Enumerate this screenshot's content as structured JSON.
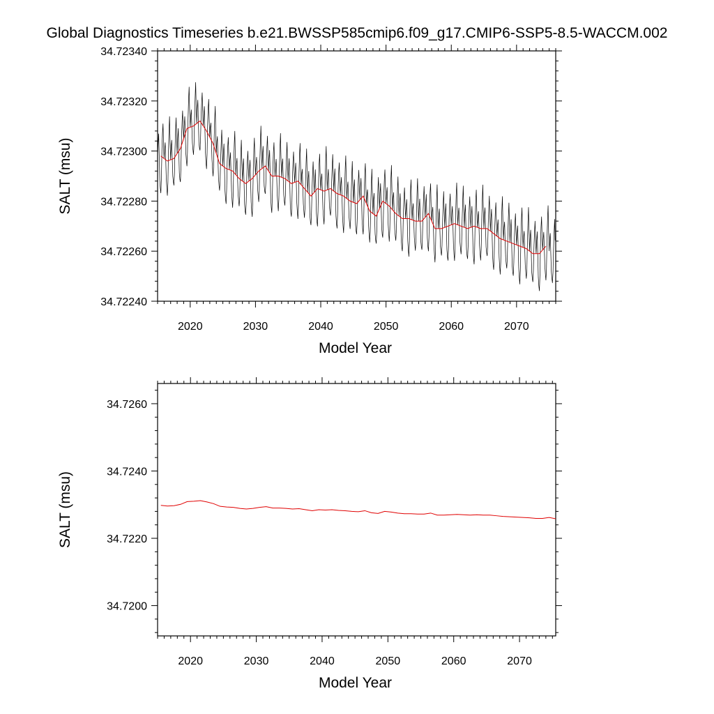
{
  "title": "Global Diagnostics Timeseries b.e21.BWSSP585cmip6.f09_g17.CMIP6-SSP5-8.5-WACCM.002",
  "colors": {
    "monthly": "#000000",
    "annual": "#e00000",
    "frame": "#000000"
  },
  "chart_data": [
    {
      "type": "line",
      "xlabel": "Model Year",
      "ylabel": "SALT (msu)",
      "xlim": [
        2015,
        2076
      ],
      "ylim": [
        34.7224,
        34.7234
      ],
      "xticks": [
        2020,
        2030,
        2040,
        2050,
        2060,
        2070
      ],
      "xtick_labels": [
        "2020",
        "2030",
        "2040",
        "2050",
        "2060",
        "2070"
      ],
      "yticks": [
        34.7224,
        34.7226,
        34.7228,
        34.723,
        34.7232,
        34.7234
      ],
      "ytick_labels": [
        "34.72240",
        "34.72260",
        "34.72280",
        "34.72300",
        "34.72320",
        "34.72340"
      ],
      "series": [
        {
          "style": "monthly",
          "x_start": 2015.0,
          "x_step": 0.08333,
          "annual_cycle": [
            0.0,
            5e-05,
            8e-05,
            0.0,
            -8e-05,
            -0.00011,
            -0.00013,
            -8e-05,
            3e-05,
            0.0001,
            0.00015,
            6e-05
          ],
          "anomaly_years": [
            2015.5,
            2016.5,
            2017.5,
            2018.5,
            2019.5,
            2020.5,
            2021.5,
            2022.5,
            2023.5,
            2024.5,
            2025.5,
            2026.5,
            2027.5,
            2028.5,
            2029.5,
            2030.5,
            2031.5,
            2032.5,
            2033.5,
            2034.5,
            2035.5,
            2036.5,
            2037.5,
            2038.5,
            2039.5,
            2040.5,
            2041.5,
            2042.5,
            2043.5,
            2044.5,
            2045.5,
            2046.5,
            2047.5,
            2048.5,
            2049.5,
            2050.5,
            2051.5,
            2052.5,
            2053.5,
            2054.5,
            2055.5,
            2056.5,
            2057.5,
            2058.5,
            2059.5,
            2060.5,
            2061.5,
            2062.5,
            2063.5,
            2064.5,
            2065.5,
            2066.5,
            2067.5,
            2068.5,
            2069.5,
            2070.5,
            2071.5,
            2072.5,
            2073.5,
            2074.5,
            2075.5
          ],
          "baseline": [
            34.72298,
            34.72296,
            34.72297,
            34.72301,
            34.72309,
            34.7231,
            34.72312,
            34.72308,
            34.72303,
            34.72295,
            34.72293,
            34.72292,
            34.72289,
            34.72287,
            34.72289,
            34.72292,
            34.72294,
            34.7229,
            34.7229,
            34.72289,
            34.72287,
            34.72288,
            34.72285,
            34.72282,
            34.72285,
            34.72284,
            34.72285,
            34.72283,
            34.72282,
            34.7228,
            34.72279,
            34.72282,
            34.72276,
            34.72274,
            34.7228,
            34.72278,
            34.72275,
            34.72273,
            34.72273,
            34.72272,
            34.72272,
            34.72275,
            34.72269,
            34.72269,
            34.7227,
            34.72271,
            34.7227,
            34.72269,
            34.7227,
            34.72269,
            34.72269,
            34.72267,
            34.72265,
            34.72264,
            34.72263,
            34.72262,
            34.72261,
            34.72259,
            34.72259,
            34.72262,
            34.72258
          ]
        },
        {
          "style": "annual",
          "x": [
            2015.5,
            2016.5,
            2017.5,
            2018.5,
            2019.5,
            2020.5,
            2021.5,
            2022.5,
            2023.5,
            2024.5,
            2025.5,
            2026.5,
            2027.5,
            2028.5,
            2029.5,
            2030.5,
            2031.5,
            2032.5,
            2033.5,
            2034.5,
            2035.5,
            2036.5,
            2037.5,
            2038.5,
            2039.5,
            2040.5,
            2041.5,
            2042.5,
            2043.5,
            2044.5,
            2045.5,
            2046.5,
            2047.5,
            2048.5,
            2049.5,
            2050.5,
            2051.5,
            2052.5,
            2053.5,
            2054.5,
            2055.5,
            2056.5,
            2057.5,
            2058.5,
            2059.5,
            2060.5,
            2061.5,
            2062.5,
            2063.5,
            2064.5,
            2065.5,
            2066.5,
            2067.5,
            2068.5,
            2069.5,
            2070.5,
            2071.5,
            2072.5,
            2073.5,
            2074.5
          ],
          "y": [
            34.72298,
            34.72296,
            34.72297,
            34.72301,
            34.72309,
            34.7231,
            34.72312,
            34.72308,
            34.72303,
            34.72295,
            34.72293,
            34.72292,
            34.72289,
            34.72287,
            34.72289,
            34.72292,
            34.72294,
            34.7229,
            34.7229,
            34.72289,
            34.72287,
            34.72288,
            34.72285,
            34.72282,
            34.72285,
            34.72284,
            34.72285,
            34.72283,
            34.72282,
            34.7228,
            34.72279,
            34.72282,
            34.72276,
            34.72274,
            34.7228,
            34.72278,
            34.72275,
            34.72273,
            34.72273,
            34.72272,
            34.72272,
            34.72275,
            34.72269,
            34.72269,
            34.7227,
            34.72271,
            34.7227,
            34.72269,
            34.7227,
            34.72269,
            34.72269,
            34.72267,
            34.72265,
            34.72264,
            34.72263,
            34.72262,
            34.72261,
            34.72259,
            34.72259,
            34.72262
          ]
        }
      ]
    },
    {
      "type": "line",
      "xlabel": "Model Year",
      "ylabel": "SALT (msu)",
      "xlim": [
        2015,
        2075.5
      ],
      "ylim": [
        34.7191,
        34.7266
      ],
      "xticks": [
        2020,
        2030,
        2040,
        2050,
        2060,
        2070
      ],
      "xtick_labels": [
        "2020",
        "2030",
        "2040",
        "2050",
        "2060",
        "2070"
      ],
      "yticks": [
        34.72,
        34.722,
        34.724,
        34.726
      ],
      "ytick_labels": [
        "34.7200",
        "34.7220",
        "34.7240",
        "34.7260"
      ],
      "series": [
        {
          "style": "annual",
          "x": [
            2015.5,
            2016.5,
            2017.5,
            2018.5,
            2019.5,
            2020.5,
            2021.5,
            2022.5,
            2023.5,
            2024.5,
            2025.5,
            2026.5,
            2027.5,
            2028.5,
            2029.5,
            2030.5,
            2031.5,
            2032.5,
            2033.5,
            2034.5,
            2035.5,
            2036.5,
            2037.5,
            2038.5,
            2039.5,
            2040.5,
            2041.5,
            2042.5,
            2043.5,
            2044.5,
            2045.5,
            2046.5,
            2047.5,
            2048.5,
            2049.5,
            2050.5,
            2051.5,
            2052.5,
            2053.5,
            2054.5,
            2055.5,
            2056.5,
            2057.5,
            2058.5,
            2059.5,
            2060.5,
            2061.5,
            2062.5,
            2063.5,
            2064.5,
            2065.5,
            2066.5,
            2067.5,
            2068.5,
            2069.5,
            2070.5,
            2071.5,
            2072.5,
            2073.5,
            2074.5,
            2075.5
          ],
          "y": [
            34.72298,
            34.72296,
            34.72297,
            34.72301,
            34.72309,
            34.7231,
            34.72312,
            34.72308,
            34.72303,
            34.72295,
            34.72293,
            34.72292,
            34.72289,
            34.72287,
            34.72289,
            34.72292,
            34.72294,
            34.7229,
            34.7229,
            34.72289,
            34.72287,
            34.72288,
            34.72285,
            34.72282,
            34.72285,
            34.72284,
            34.72285,
            34.72283,
            34.72282,
            34.7228,
            34.72279,
            34.72282,
            34.72276,
            34.72274,
            34.7228,
            34.72278,
            34.72275,
            34.72273,
            34.72273,
            34.72272,
            34.72272,
            34.72275,
            34.72269,
            34.72269,
            34.7227,
            34.72271,
            34.7227,
            34.72269,
            34.7227,
            34.72269,
            34.72269,
            34.72267,
            34.72265,
            34.72264,
            34.72263,
            34.72262,
            34.72261,
            34.72259,
            34.72259,
            34.72262,
            34.72258
          ]
        }
      ]
    }
  ]
}
